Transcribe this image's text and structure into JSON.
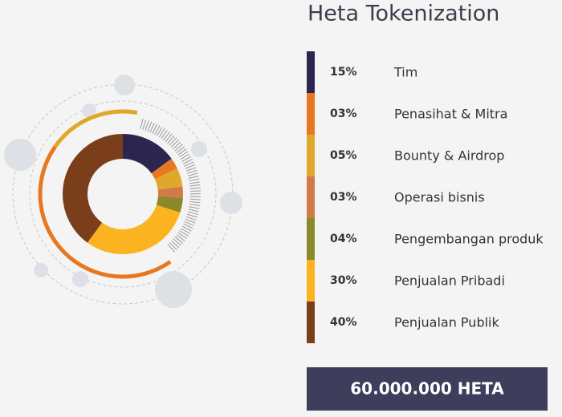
{
  "chart_data": {
    "type": "pie",
    "donut": true,
    "title": "Heta Tokenization",
    "categories": [
      "Tim",
      "Penasihat & Mitra",
      "Bounty & Airdrop",
      "Operasi bisnis",
      "Pengembangan produk",
      "Penjualan Pribadi",
      "Penjualan Publik"
    ],
    "values": [
      15,
      3,
      5,
      3,
      4,
      30,
      40
    ],
    "value_labels": [
      "15%",
      "03%",
      "05%",
      "03%",
      "04%",
      "30%",
      "40%"
    ],
    "colors": [
      "#2b2550",
      "#e87722",
      "#e0a82a",
      "#d47a4a",
      "#8a8a2a",
      "#fbb41f",
      "#7a3f1a"
    ],
    "total_label": "60.000.000 HETA"
  }
}
